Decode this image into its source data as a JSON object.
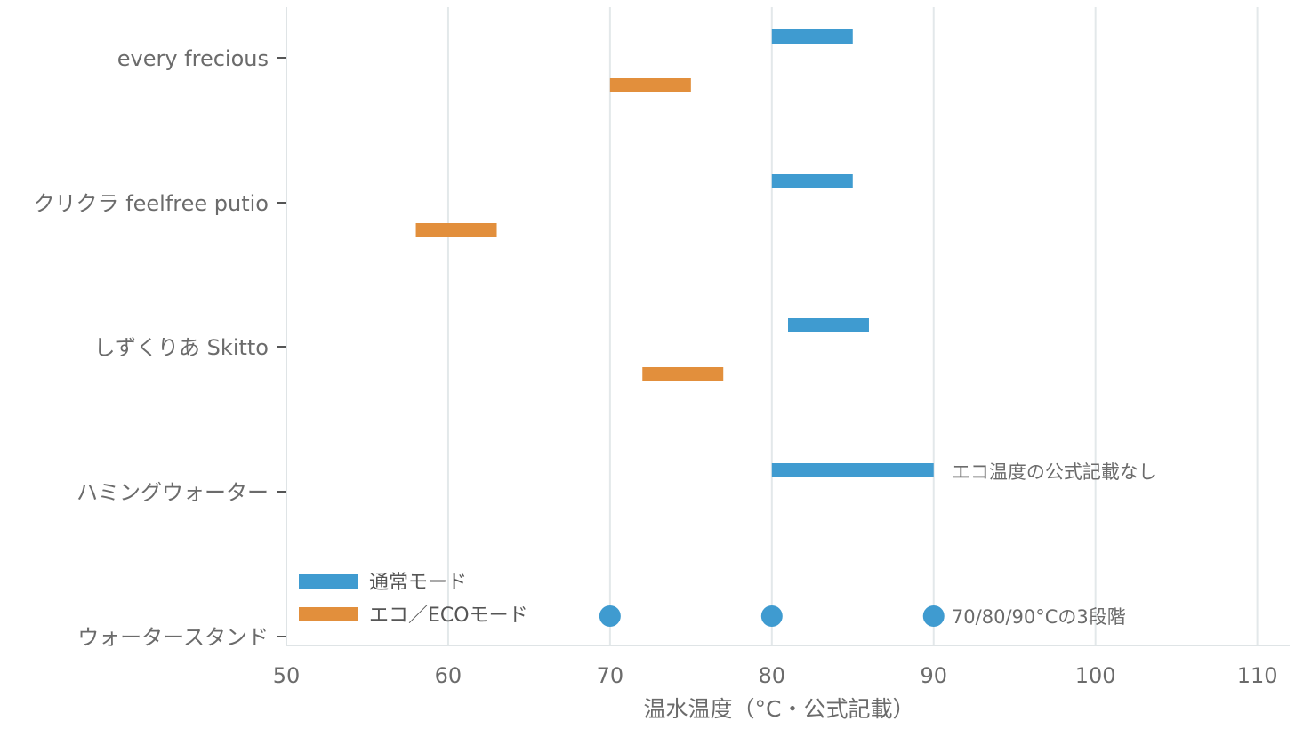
{
  "chart_data": {
    "type": "bar",
    "title": "",
    "xlabel": "温水温度（°C・公式記載）",
    "ylabel": "",
    "xlim": [
      50,
      112
    ],
    "xticks": [
      50,
      60,
      70,
      80,
      90,
      100,
      110
    ],
    "grid": true,
    "legend_position": "bottom-left",
    "colors": {
      "normal": "#3f9bd0",
      "eco": "#e28f3c",
      "grid": "#e3e8ea",
      "axis": "#dfe4e6"
    },
    "categories": [
      "every frecious",
      "クリクラ feelfree putio",
      "しずくりあ Skitto",
      "ハミングウォーター",
      "ウォータースタンド"
    ],
    "series": [
      {
        "name": "通常モード",
        "key": "normal",
        "ranges": [
          [
            80,
            85
          ],
          [
            80,
            85
          ],
          [
            81,
            86
          ],
          [
            80,
            90
          ],
          null
        ]
      },
      {
        "name": "エコ／ECOモード",
        "key": "eco",
        "ranges": [
          [
            70,
            75
          ],
          [
            58,
            63
          ],
          [
            72,
            77
          ],
          null,
          null
        ]
      }
    ],
    "points": [
      {
        "category": "ウォータースタンド",
        "values": [
          70,
          80,
          90
        ]
      }
    ],
    "annotations": [
      {
        "category": "ハミングウォーター",
        "text": "エコ温度の公式記載なし",
        "x": 91
      },
      {
        "category": "ウォータースタンド",
        "text": "70/80/90°Cの3段階",
        "x": 91
      }
    ]
  }
}
